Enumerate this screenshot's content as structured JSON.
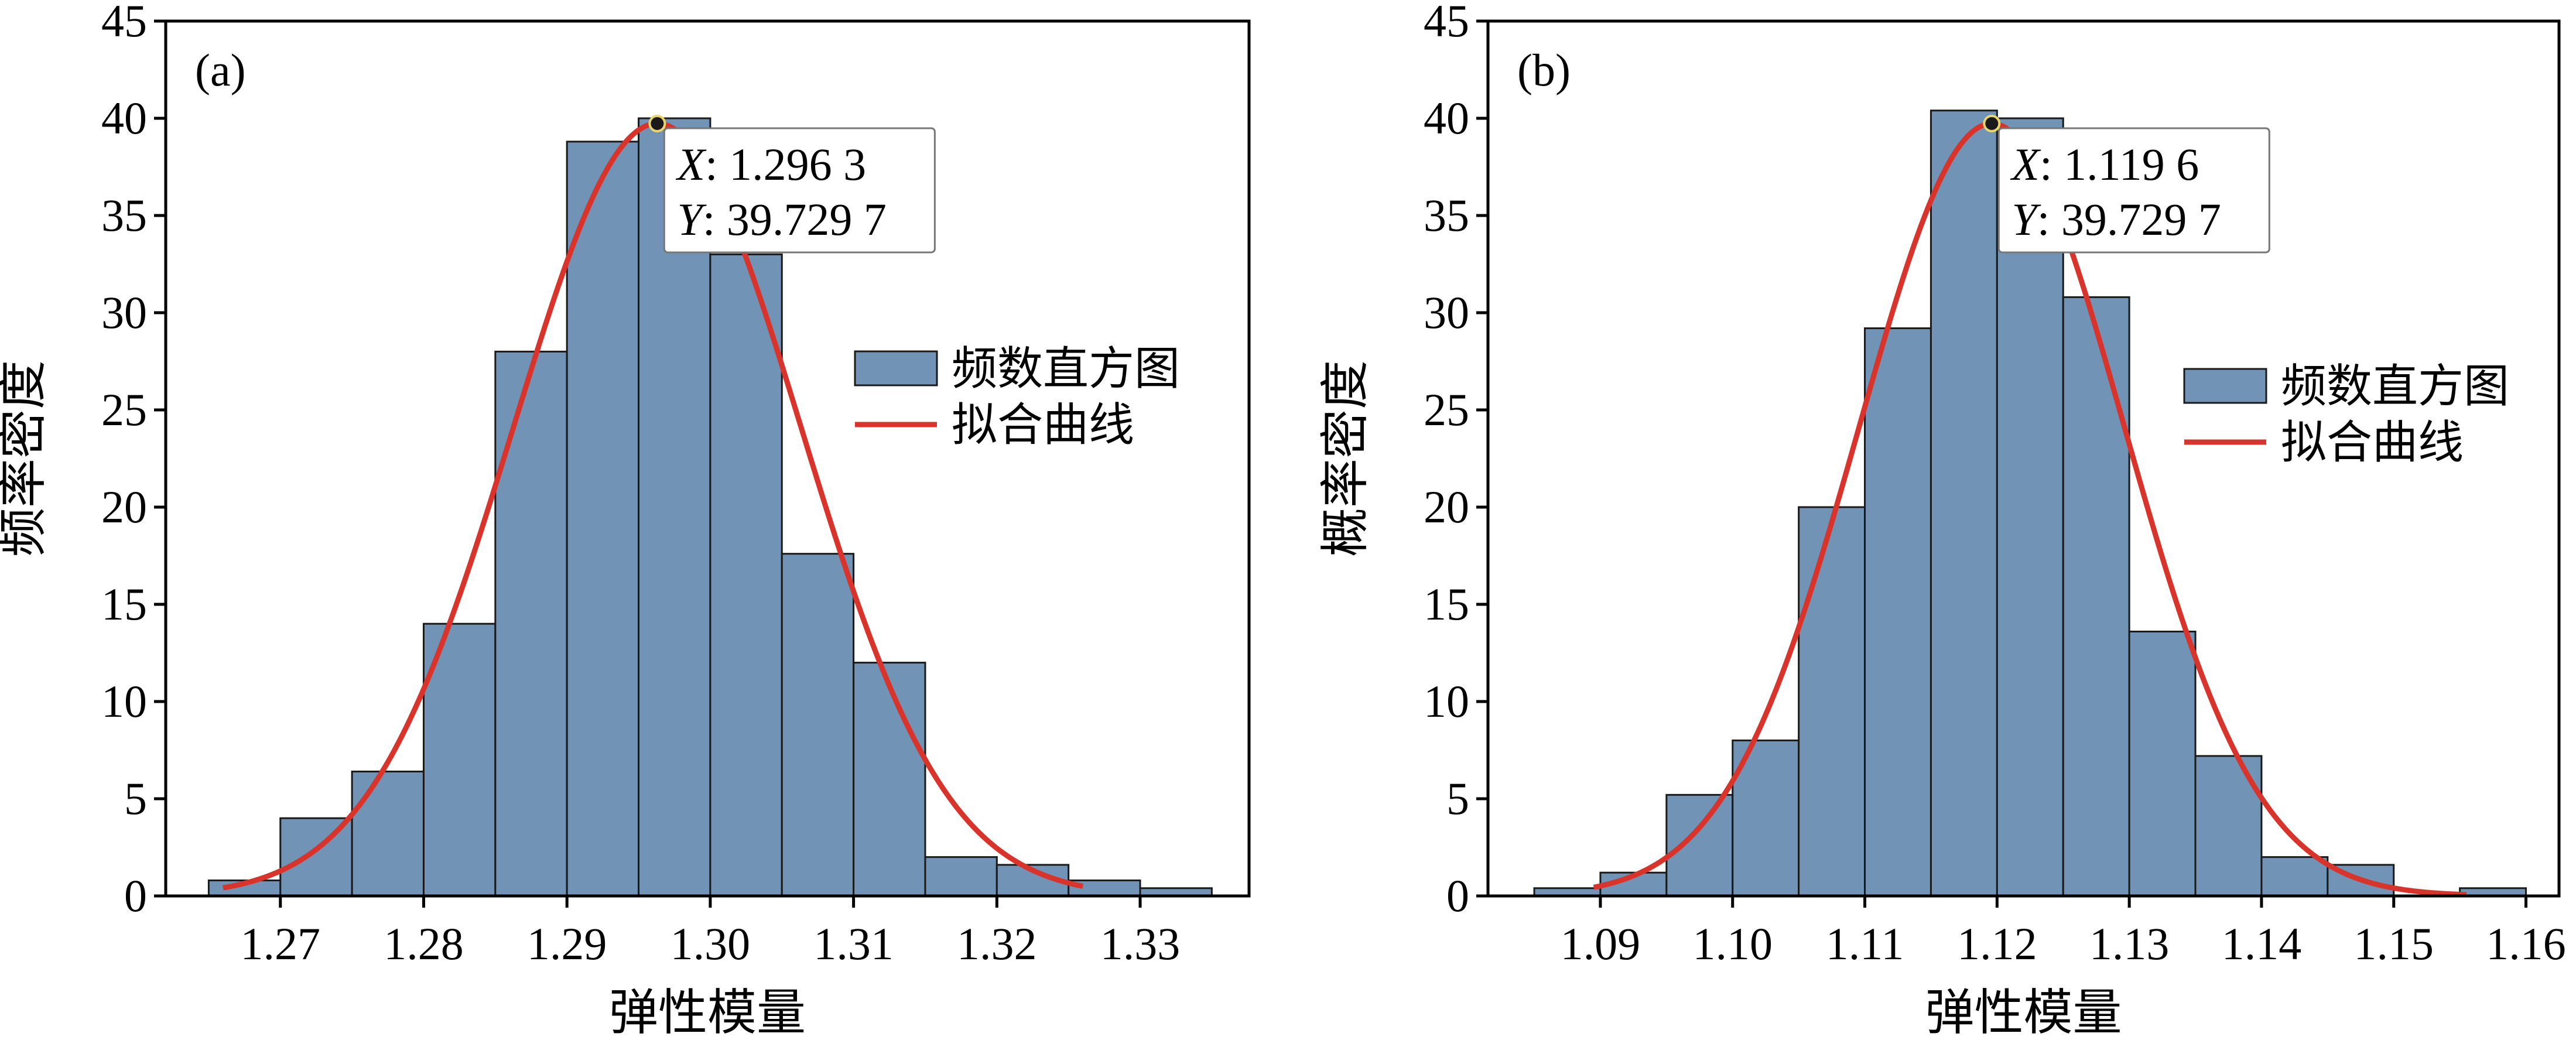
{
  "colors": {
    "bar_fill": "#7193B5",
    "bar_stroke": "#1a1a1a",
    "fit_curve": "#D9342B",
    "axis": "#000000",
    "marker": "#1a1a1a"
  },
  "chart_data": [
    {
      "type": "bar",
      "panel_label": "(a)",
      "xlabel": "弹性模量",
      "ylabel": "频率密度",
      "xlim": [
        1.262,
        1.3376
      ],
      "ylim": [
        0,
        45
      ],
      "xticks": [
        "1.27",
        "1.28",
        "1.29",
        "1.30",
        "1.31",
        "1.32",
        "1.33"
      ],
      "xtick_values": [
        1.27,
        1.28,
        1.29,
        1.3,
        1.31,
        1.32,
        1.33
      ],
      "yticks": [
        0,
        5,
        10,
        15,
        20,
        25,
        30,
        35,
        40,
        45
      ],
      "bin_edges": [
        1.265,
        1.27,
        1.275,
        1.28,
        1.285,
        1.29,
        1.295,
        1.3,
        1.305,
        1.31,
        1.315,
        1.32,
        1.325,
        1.33,
        1.335
      ],
      "values": [
        0.8,
        4.0,
        6.4,
        14.0,
        28.0,
        38.8,
        40.0,
        33.0,
        17.6,
        12.0,
        2.0,
        1.6,
        0.8,
        0.4
      ],
      "fit": {
        "type": "normal",
        "mean": 1.2963,
        "peak": 39.7297,
        "x_range": [
          1.266,
          1.326
        ]
      },
      "legend": {
        "position": "right",
        "items": [
          {
            "kind": "bar",
            "label": "频数直方图"
          },
          {
            "kind": "line",
            "label": "拟合曲线"
          }
        ]
      },
      "annotation": {
        "x": 1.2963,
        "y": 39.7297,
        "x_label": "X",
        "x_text": ": 1.296 3",
        "y_label": "Y",
        "y_text": ": 39.729 7"
      }
    },
    {
      "type": "bar",
      "panel_label": "(b)",
      "xlabel": "弹性模量",
      "ylabel": "概率密度",
      "xlim": [
        1.0815,
        1.1625
      ],
      "ylim": [
        0,
        45
      ],
      "xticks": [
        "1.09",
        "1.10",
        "1.11",
        "1.12",
        "1.13",
        "1.14",
        "1.15",
        "1.16"
      ],
      "xtick_values": [
        1.09,
        1.1,
        1.11,
        1.12,
        1.13,
        1.14,
        1.15,
        1.16
      ],
      "yticks": [
        0,
        5,
        10,
        15,
        20,
        25,
        30,
        35,
        40,
        45
      ],
      "bin_edges": [
        1.085,
        1.09,
        1.095,
        1.1,
        1.105,
        1.11,
        1.115,
        1.12,
        1.125,
        1.13,
        1.135,
        1.14,
        1.145,
        1.15,
        1.155,
        1.16
      ],
      "values": [
        0.4,
        1.2,
        5.2,
        8.0,
        20.0,
        29.2,
        40.4,
        40.0,
        30.8,
        13.6,
        7.2,
        2.0,
        1.6,
        0.0,
        0.4
      ],
      "fit": {
        "type": "normal",
        "mean": 1.1196,
        "peak": 39.7297,
        "x_range": [
          1.0895,
          1.1555
        ]
      },
      "legend": {
        "position": "right",
        "items": [
          {
            "kind": "bar",
            "label": "频数直方图"
          },
          {
            "kind": "line",
            "label": "拟合曲线"
          }
        ]
      },
      "annotation": {
        "x": 1.1196,
        "y": 39.7297,
        "x_label": "X",
        "x_text": ": 1.119 6",
        "y_label": "Y",
        "y_text": ": 39.729 7"
      }
    }
  ]
}
